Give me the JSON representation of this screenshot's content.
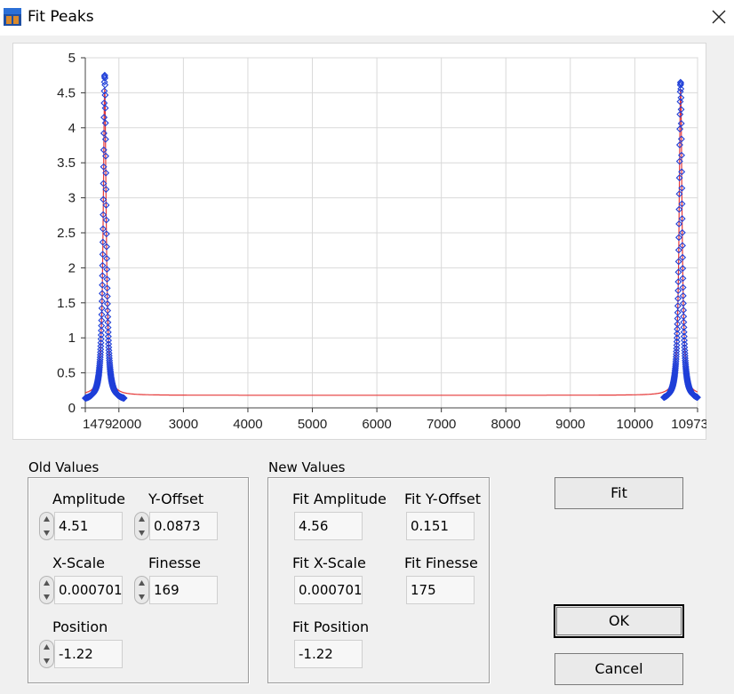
{
  "window": {
    "title": "Fit Peaks"
  },
  "chart_data": {
    "type": "scatter",
    "xlim": [
      1479,
      10973
    ],
    "ylim": [
      0,
      5
    ],
    "x_ticks": [
      "1479",
      "2000",
      "3000",
      "4000",
      "5000",
      "6000",
      "7000",
      "8000",
      "9000",
      "10000",
      "10973"
    ],
    "y_ticks": [
      "0",
      "0.5",
      "1",
      "1.5",
      "2",
      "2.5",
      "3",
      "3.5",
      "4",
      "4.5",
      "5"
    ],
    "grid": true,
    "series": [
      {
        "kind": "scatter-markers",
        "color": "#1f3fd8",
        "peaks": [
          {
            "center": 1780,
            "amplitude": 4.75,
            "baseline": 0.1
          },
          {
            "center": 10710,
            "amplitude": 4.65,
            "baseline": 0.1
          }
        ],
        "x_ranges": [
          [
            1479,
            2080
          ],
          [
            10450,
            10973
          ]
        ]
      },
      {
        "kind": "fit-line",
        "color": "#e53a3a",
        "peaks": [
          {
            "center": 1780,
            "amplitude": 4.56,
            "baseline": 0.18
          },
          {
            "center": 10710,
            "amplitude": 4.56,
            "baseline": 0.18
          }
        ]
      }
    ]
  },
  "old_values": {
    "title": "Old Values",
    "amplitude": {
      "label": "Amplitude",
      "value": "4.51"
    },
    "y_offset": {
      "label": "Y-Offset",
      "value": "0.0873"
    },
    "x_scale": {
      "label": "X-Scale",
      "value": "0.000701"
    },
    "finesse": {
      "label": "Finesse",
      "value": "169"
    },
    "position": {
      "label": "Position",
      "value": "-1.22"
    }
  },
  "new_values": {
    "title": "New Values",
    "amplitude": {
      "label": "Fit Amplitude",
      "value": "4.56"
    },
    "y_offset": {
      "label": "Fit Y-Offset",
      "value": "0.151"
    },
    "x_scale": {
      "label": "Fit X-Scale",
      "value": "0.000701"
    },
    "finesse": {
      "label": "Fit Finesse",
      "value": "175"
    },
    "position": {
      "label": "Fit Position",
      "value": "-1.22"
    }
  },
  "buttons": {
    "fit": "Fit",
    "ok": "OK",
    "cancel": "Cancel"
  }
}
